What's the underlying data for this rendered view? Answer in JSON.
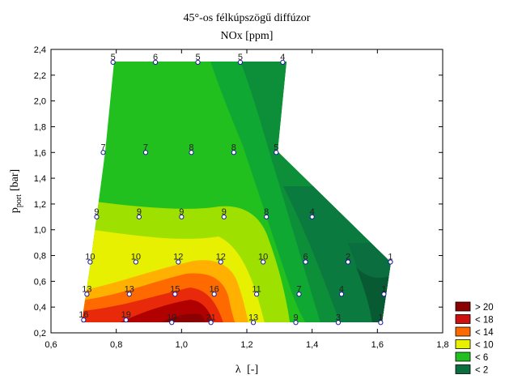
{
  "chart_data": {
    "type": "contour",
    "title": "45°-os félkúpszögű diffúzor",
    "subtitle": "NOx [ppm]",
    "xlabel_symbol": "λ",
    "xlabel_unit": "[-]",
    "ylabel_symbol": "p",
    "ylabel_sub": "port",
    "ylabel_unit": "[bar]",
    "xlim": [
      0.6,
      1.8
    ],
    "ylim": [
      0.2,
      2.4
    ],
    "x_ticks": [
      {
        "v": 0.6,
        "label": "0,6"
      },
      {
        "v": 0.8,
        "label": "0,8"
      },
      {
        "v": 1.0,
        "label": "1,0"
      },
      {
        "v": 1.2,
        "label": "1,2"
      },
      {
        "v": 1.4,
        "label": "1,4"
      },
      {
        "v": 1.6,
        "label": "1,6"
      },
      {
        "v": 1.8,
        "label": "1,8"
      }
    ],
    "y_ticks": [
      {
        "v": 0.2,
        "label": "0,2"
      },
      {
        "v": 0.4,
        "label": "0,4"
      },
      {
        "v": 0.6,
        "label": "0,6"
      },
      {
        "v": 0.8,
        "label": "0,8"
      },
      {
        "v": 1.0,
        "label": "1,0"
      },
      {
        "v": 1.2,
        "label": "1,2"
      },
      {
        "v": 1.4,
        "label": "1,4"
      },
      {
        "v": 1.6,
        "label": "1,6"
      },
      {
        "v": 1.8,
        "label": "1,8"
      },
      {
        "v": 2.0,
        "label": "2,0"
      },
      {
        "v": 2.2,
        "label": "2,2"
      },
      {
        "v": 2.4,
        "label": "2,4"
      }
    ],
    "legend": [
      {
        "label": "> 20",
        "color": "#8b0000"
      },
      {
        "label": "< 18",
        "color": "#d01010"
      },
      {
        "label": "< 14",
        "color": "#ff6a00"
      },
      {
        "label": "< 10",
        "color": "#e6f000"
      },
      {
        "label": "< 6",
        "color": "#22c01e"
      },
      {
        "label": "< 2",
        "color": "#0a6e3e"
      }
    ],
    "grid": false,
    "legend_position": "bottom-right",
    "points": [
      {
        "x": 0.7,
        "y": 0.3,
        "value": "16"
      },
      {
        "x": 0.83,
        "y": 0.3,
        "value": "19"
      },
      {
        "x": 0.97,
        "y": 0.28,
        "value": "19"
      },
      {
        "x": 1.09,
        "y": 0.28,
        "value": "21"
      },
      {
        "x": 1.22,
        "y": 0.28,
        "value": "13"
      },
      {
        "x": 1.35,
        "y": 0.28,
        "value": "9"
      },
      {
        "x": 1.48,
        "y": 0.28,
        "value": "3"
      },
      {
        "x": 1.61,
        "y": 0.28,
        "value": "1"
      },
      {
        "x": 0.71,
        "y": 0.5,
        "value": "13"
      },
      {
        "x": 0.84,
        "y": 0.5,
        "value": "13"
      },
      {
        "x": 0.98,
        "y": 0.5,
        "value": "15"
      },
      {
        "x": 1.1,
        "y": 0.5,
        "value": "16"
      },
      {
        "x": 1.23,
        "y": 0.5,
        "value": "11"
      },
      {
        "x": 1.36,
        "y": 0.5,
        "value": "7"
      },
      {
        "x": 1.49,
        "y": 0.5,
        "value": "4"
      },
      {
        "x": 1.62,
        "y": 0.5,
        "value": "1"
      },
      {
        "x": 0.72,
        "y": 0.75,
        "value": "10"
      },
      {
        "x": 0.86,
        "y": 0.75,
        "value": "10"
      },
      {
        "x": 0.99,
        "y": 0.75,
        "value": "12"
      },
      {
        "x": 1.12,
        "y": 0.75,
        "value": "12"
      },
      {
        "x": 1.25,
        "y": 0.75,
        "value": "10"
      },
      {
        "x": 1.38,
        "y": 0.75,
        "value": "6"
      },
      {
        "x": 1.51,
        "y": 0.75,
        "value": "2"
      },
      {
        "x": 1.64,
        "y": 0.75,
        "value": "1"
      },
      {
        "x": 0.74,
        "y": 1.1,
        "value": "9"
      },
      {
        "x": 0.87,
        "y": 1.1,
        "value": "9"
      },
      {
        "x": 1.0,
        "y": 1.1,
        "value": "9"
      },
      {
        "x": 1.13,
        "y": 1.1,
        "value": "9"
      },
      {
        "x": 1.26,
        "y": 1.1,
        "value": "8"
      },
      {
        "x": 1.4,
        "y": 1.1,
        "value": "4"
      },
      {
        "x": 0.76,
        "y": 1.6,
        "value": "7"
      },
      {
        "x": 0.89,
        "y": 1.6,
        "value": "7"
      },
      {
        "x": 1.03,
        "y": 1.6,
        "value": "8"
      },
      {
        "x": 1.16,
        "y": 1.6,
        "value": "8"
      },
      {
        "x": 1.29,
        "y": 1.6,
        "value": "5"
      },
      {
        "x": 0.79,
        "y": 2.3,
        "value": "5"
      },
      {
        "x": 0.92,
        "y": 2.3,
        "value": "6"
      },
      {
        "x": 1.05,
        "y": 2.3,
        "value": "5"
      },
      {
        "x": 1.18,
        "y": 2.3,
        "value": "5"
      },
      {
        "x": 1.31,
        "y": 2.3,
        "value": "4"
      }
    ]
  }
}
